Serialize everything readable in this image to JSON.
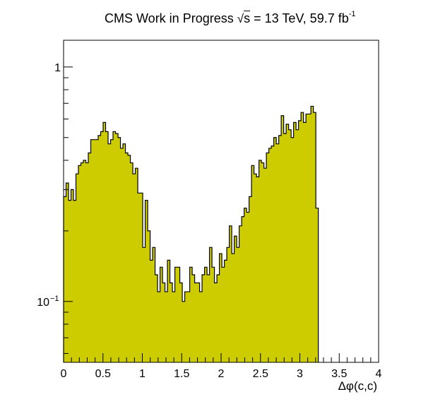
{
  "header": {
    "experiment": "CMS",
    "status": "Work in Progress",
    "sqrt_symbol": "√",
    "sqrt_var": "s",
    "energy": "= 13 TeV, 59.7 fb",
    "lumi_exponent": "-1"
  },
  "chart_data": {
    "type": "histogram",
    "title": "",
    "xlabel": "Δφ(c,c)",
    "ylabel": "",
    "xlim": [
      0,
      4
    ],
    "ylim": [
      0.055,
      1.3
    ],
    "y_scale": "log",
    "fill_color": "#cccc00",
    "line_color": "#000000",
    "bin_width": 0.0314,
    "x_ticks": [
      {
        "value": 0,
        "label": "0"
      },
      {
        "value": 0.5,
        "label": "0.5"
      },
      {
        "value": 1,
        "label": "1"
      },
      {
        "value": 1.5,
        "label": "1.5"
      },
      {
        "value": 2,
        "label": "2"
      },
      {
        "value": 2.5,
        "label": "2.5"
      },
      {
        "value": 3,
        "label": "3"
      },
      {
        "value": 3.5,
        "label": "3.5"
      },
      {
        "value": 4,
        "label": "4"
      }
    ],
    "y_major_ticks": [
      {
        "value": 0.1,
        "label_base": "10",
        "label_exp": "−1"
      },
      {
        "value": 1,
        "label_base": "1",
        "label_exp": ""
      }
    ],
    "values": [
      0.28,
      0.32,
      0.27,
      0.3,
      0.27,
      0.35,
      0.38,
      0.39,
      0.4,
      0.39,
      0.43,
      0.49,
      0.49,
      0.49,
      0.51,
      0.53,
      0.58,
      0.53,
      0.47,
      0.49,
      0.53,
      0.52,
      0.5,
      0.45,
      0.47,
      0.43,
      0.42,
      0.39,
      0.35,
      0.37,
      0.29,
      0.29,
      0.17,
      0.27,
      0.2,
      0.15,
      0.17,
      0.13,
      0.11,
      0.14,
      0.12,
      0.11,
      0.15,
      0.12,
      0.11,
      0.14,
      0.14,
      0.12,
      0.1,
      0.11,
      0.11,
      0.14,
      0.13,
      0.12,
      0.12,
      0.11,
      0.13,
      0.14,
      0.13,
      0.17,
      0.14,
      0.12,
      0.13,
      0.16,
      0.14,
      0.15,
      0.17,
      0.21,
      0.16,
      0.19,
      0.17,
      0.21,
      0.23,
      0.25,
      0.24,
      0.28,
      0.38,
      0.35,
      0.34,
      0.4,
      0.39,
      0.37,
      0.43,
      0.45,
      0.46,
      0.5,
      0.47,
      0.51,
      0.62,
      0.52,
      0.57,
      0.54,
      0.5,
      0.58,
      0.54,
      0.59,
      0.64,
      0.58,
      0.63,
      0.63,
      0.68,
      0.64,
      0.25
    ]
  }
}
